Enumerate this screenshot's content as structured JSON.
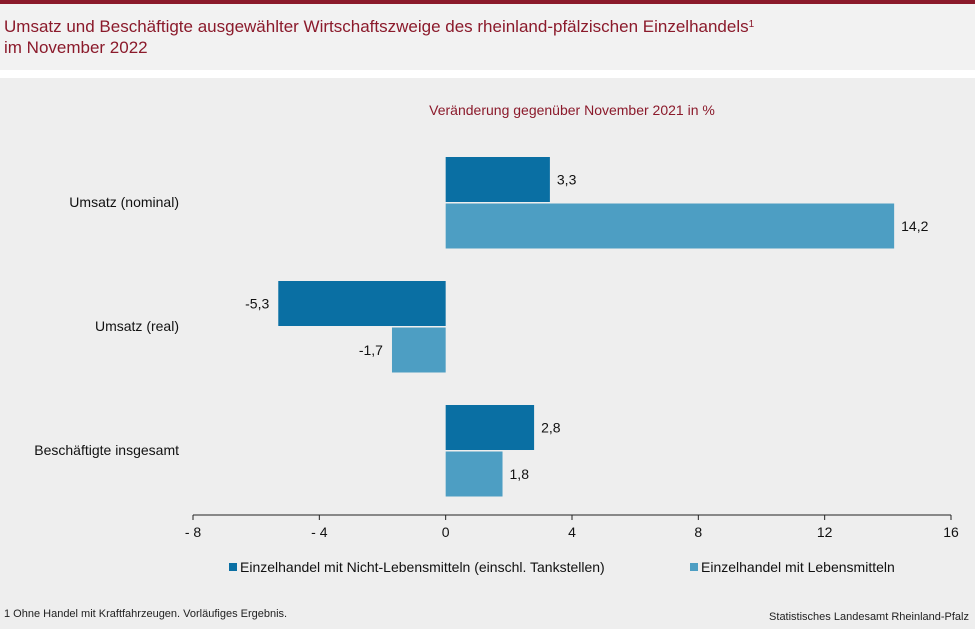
{
  "header": {
    "title_line1": "Umsatz und Beschäftigte ausgewählter Wirtschaftszweige des rheinland-pfälzischen Einzelhandels",
    "title_sup": "1",
    "title_line2": "im November 2022"
  },
  "footnote": "1 Ohne Handel mit Kraftfahrzeugen. Vorläufiges Ergebnis.",
  "source": "Statistisches Landesamt Rheinland-Pfalz",
  "colors": {
    "series1": "#0a6fa3",
    "series2": "#4d9ec3",
    "title": "#8b1a2b"
  },
  "chart_data": {
    "type": "bar",
    "orientation": "horizontal",
    "subtitle": "Veränderung gegenüber November 2021 in %",
    "categories": [
      "Umsatz (nominal)",
      "Umsatz (real)",
      "Beschäftigte insgesamt"
    ],
    "series": [
      {
        "name": "Einzelhandel mit Nicht-Lebensmitteln (einschl. Tankstellen)",
        "values": [
          3.3,
          -5.3,
          2.8
        ],
        "labels": [
          "3,3",
          "-5,3",
          "2,8"
        ]
      },
      {
        "name": "Einzelhandel mit Lebensmitteln",
        "values": [
          14.2,
          -1.7,
          1.8
        ],
        "labels": [
          "14,2",
          "-1,7",
          "1,8"
        ]
      }
    ],
    "xlim": [
      -8,
      16
    ],
    "xticks": [
      -8,
      -4,
      0,
      4,
      8,
      12,
      16
    ],
    "xtick_labels": [
      "- 8",
      "- 4",
      "0",
      "4",
      "8",
      "12",
      "16"
    ],
    "grid": false,
    "legend": "bottom"
  }
}
